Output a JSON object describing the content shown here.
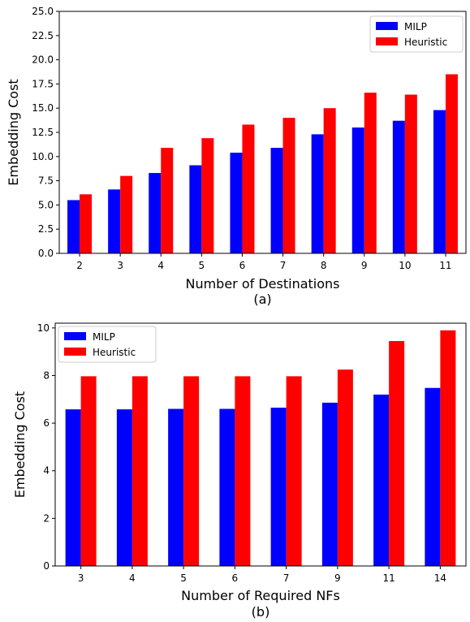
{
  "colors": {
    "milp": "#0000ff",
    "heuristic": "#ff0000"
  },
  "chart_data": [
    {
      "type": "bar",
      "caption": "(a)",
      "xlabel": "Number of Destinations",
      "ylabel": "Embedding Cost",
      "categories": [
        "2",
        "3",
        "4",
        "5",
        "6",
        "7",
        "8",
        "9",
        "10",
        "11"
      ],
      "ylim": [
        0,
        25
      ],
      "yticks": [
        "0.0",
        "2.5",
        "5.0",
        "7.5",
        "10.0",
        "12.5",
        "15.0",
        "17.5",
        "20.0",
        "22.5",
        "25.0"
      ],
      "legend": "top-right",
      "grid": false,
      "series": [
        {
          "name": "MILP",
          "values": [
            5.5,
            6.6,
            8.3,
            9.1,
            10.4,
            10.9,
            12.3,
            13.0,
            13.7,
            14.8
          ]
        },
        {
          "name": "Heuristic",
          "values": [
            6.1,
            8.0,
            10.9,
            11.9,
            13.3,
            14.0,
            15.0,
            16.6,
            16.4,
            18.5
          ]
        }
      ]
    },
    {
      "type": "bar",
      "caption": "(b)",
      "xlabel": "Number of Required NFs",
      "ylabel": "Embedding Cost",
      "categories": [
        "3",
        "4",
        "5",
        "6",
        "7",
        "9",
        "11",
        "14"
      ],
      "ylim": [
        0,
        10.2
      ],
      "yticks": [
        "0",
        "2",
        "4",
        "6",
        "8",
        "10"
      ],
      "legend": "top-left",
      "grid": false,
      "series": [
        {
          "name": "MILP",
          "values": [
            6.58,
            6.58,
            6.6,
            6.6,
            6.65,
            6.86,
            7.2,
            7.48
          ]
        },
        {
          "name": "Heuristic",
          "values": [
            7.97,
            7.97,
            7.97,
            7.97,
            7.97,
            8.25,
            9.45,
            9.9
          ]
        }
      ]
    }
  ]
}
